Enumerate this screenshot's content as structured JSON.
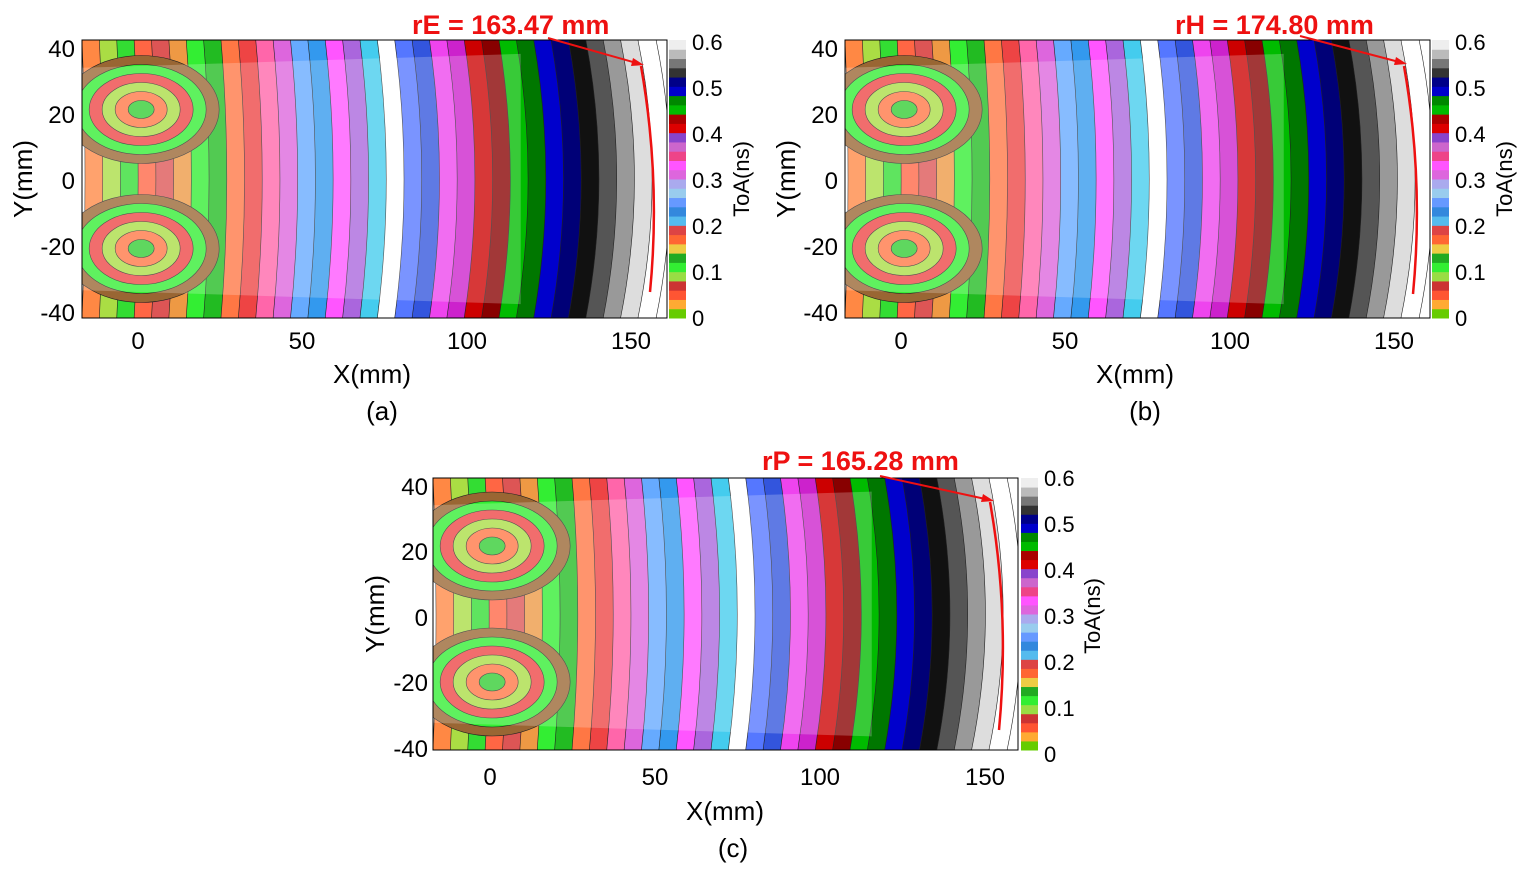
{
  "colorbar_ticks": [
    "0",
    "0.1",
    "0.2",
    "0.3",
    "0.4",
    "0.5",
    "0.6"
  ],
  "colorbar_palette": [
    "#66cc00",
    "#ffaa33",
    "#ff5533",
    "#cc3333",
    "#99dd44",
    "#33ee33",
    "#22aa22",
    "#eecc44",
    "#ff6633",
    "#dd4444",
    "#55bbee",
    "#3388dd",
    "#6699ff",
    "#99ccee",
    "#aaaaee",
    "#dd66dd",
    "#ff55ff",
    "#ee4488",
    "#cc66cc",
    "#8844cc",
    "#dd0000",
    "#aa0000",
    "#00bb00",
    "#008800",
    "#0000cc",
    "#000088",
    "#333333",
    "#777777",
    "#bbbbbb",
    "#eeeeee"
  ],
  "chart_data": [
    {
      "type": "contour",
      "caption": "(a)",
      "xlabel": "X(mm)",
      "ylabel": "Y(mm)",
      "xticks": [
        "0",
        "50",
        "100",
        "150"
      ],
      "yticks": [
        "40",
        "20",
        "0",
        "-20",
        "-40"
      ],
      "xlim": [
        -18,
        160
      ],
      "ylim": [
        -42,
        42
      ],
      "colorbar_label": "ToA(ns)",
      "colorbar_range": [
        0,
        0.6
      ],
      "annotation": "rE = 163.47 mm",
      "radius_mm": 163.47,
      "arrow_tip_x_mm": 152
    },
    {
      "type": "contour",
      "caption": "(b)",
      "xlabel": "X(mm)",
      "ylabel": "Y(mm)",
      "xticks": [
        "0",
        "50",
        "100",
        "150"
      ],
      "yticks": [
        "40",
        "20",
        "0",
        "-20",
        "-40"
      ],
      "xlim": [
        -18,
        160
      ],
      "ylim": [
        -42,
        42
      ],
      "colorbar_label": "ToA(ns)",
      "colorbar_range": [
        0,
        0.6
      ],
      "annotation": "rH = 174.80 mm",
      "radius_mm": 174.8,
      "arrow_tip_x_mm": 152
    },
    {
      "type": "contour",
      "caption": "(c)",
      "xlabel": "X(mm)",
      "ylabel": "Y(mm)",
      "xticks": [
        "0",
        "50",
        "100",
        "150"
      ],
      "yticks": [
        "40",
        "20",
        "0",
        "-20",
        "-40"
      ],
      "xlim": [
        -18,
        160
      ],
      "ylim": [
        -42,
        42
      ],
      "colorbar_label": "ToA(ns)",
      "colorbar_range": [
        0,
        0.6
      ],
      "annotation": "rP = 165.28 mm",
      "radius_mm": 165.28,
      "arrow_tip_x_mm": 152
    }
  ]
}
